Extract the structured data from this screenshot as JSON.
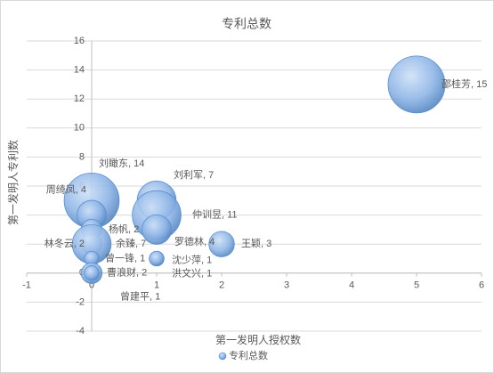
{
  "chart_data": {
    "type": "bubble",
    "title": "专利总数",
    "x_label": "第一发明人授权数",
    "y_label": "第一发明人专利数",
    "xlim": [
      -1,
      6
    ],
    "xticks": [
      -1,
      0,
      1,
      2,
      3,
      4,
      5,
      6
    ],
    "ylim": [
      -4,
      16
    ],
    "yticks": [
      -4,
      -2,
      0,
      2,
      4,
      6,
      8,
      10,
      12,
      14,
      16
    ],
    "grid": true,
    "legend": "bottom",
    "series": [
      {
        "name": "专利总数",
        "color": "#7aa7dd",
        "x": [
          5,
          0,
          1,
          1,
          0,
          0,
          1,
          2,
          0,
          0,
          0,
          1,
          0,
          1,
          0
        ],
        "values": [
          13,
          5,
          5,
          4,
          4,
          3,
          3,
          2,
          2,
          2,
          1,
          1,
          0,
          1,
          0
        ],
        "sizes": [
          15,
          14,
          7,
          11,
          4,
          2,
          4,
          3,
          2,
          7,
          1,
          1,
          2,
          1,
          1
        ],
        "value_labels": [
          "邵桂芳, 15",
          "刘瞰东, 14",
          "刘利军, 7",
          "仲训昱, 11",
          "周绮凤, 4",
          "杨帆, 2",
          "罗德林, 4",
          "王颖, 3",
          "林冬云, 2",
          "余臻, 7",
          "曾一锋, 1",
          "沈少萍, 1",
          "曹浪财, 2",
          "洪文兴, 1",
          "曾建平, 1"
        ]
      }
    ]
  }
}
